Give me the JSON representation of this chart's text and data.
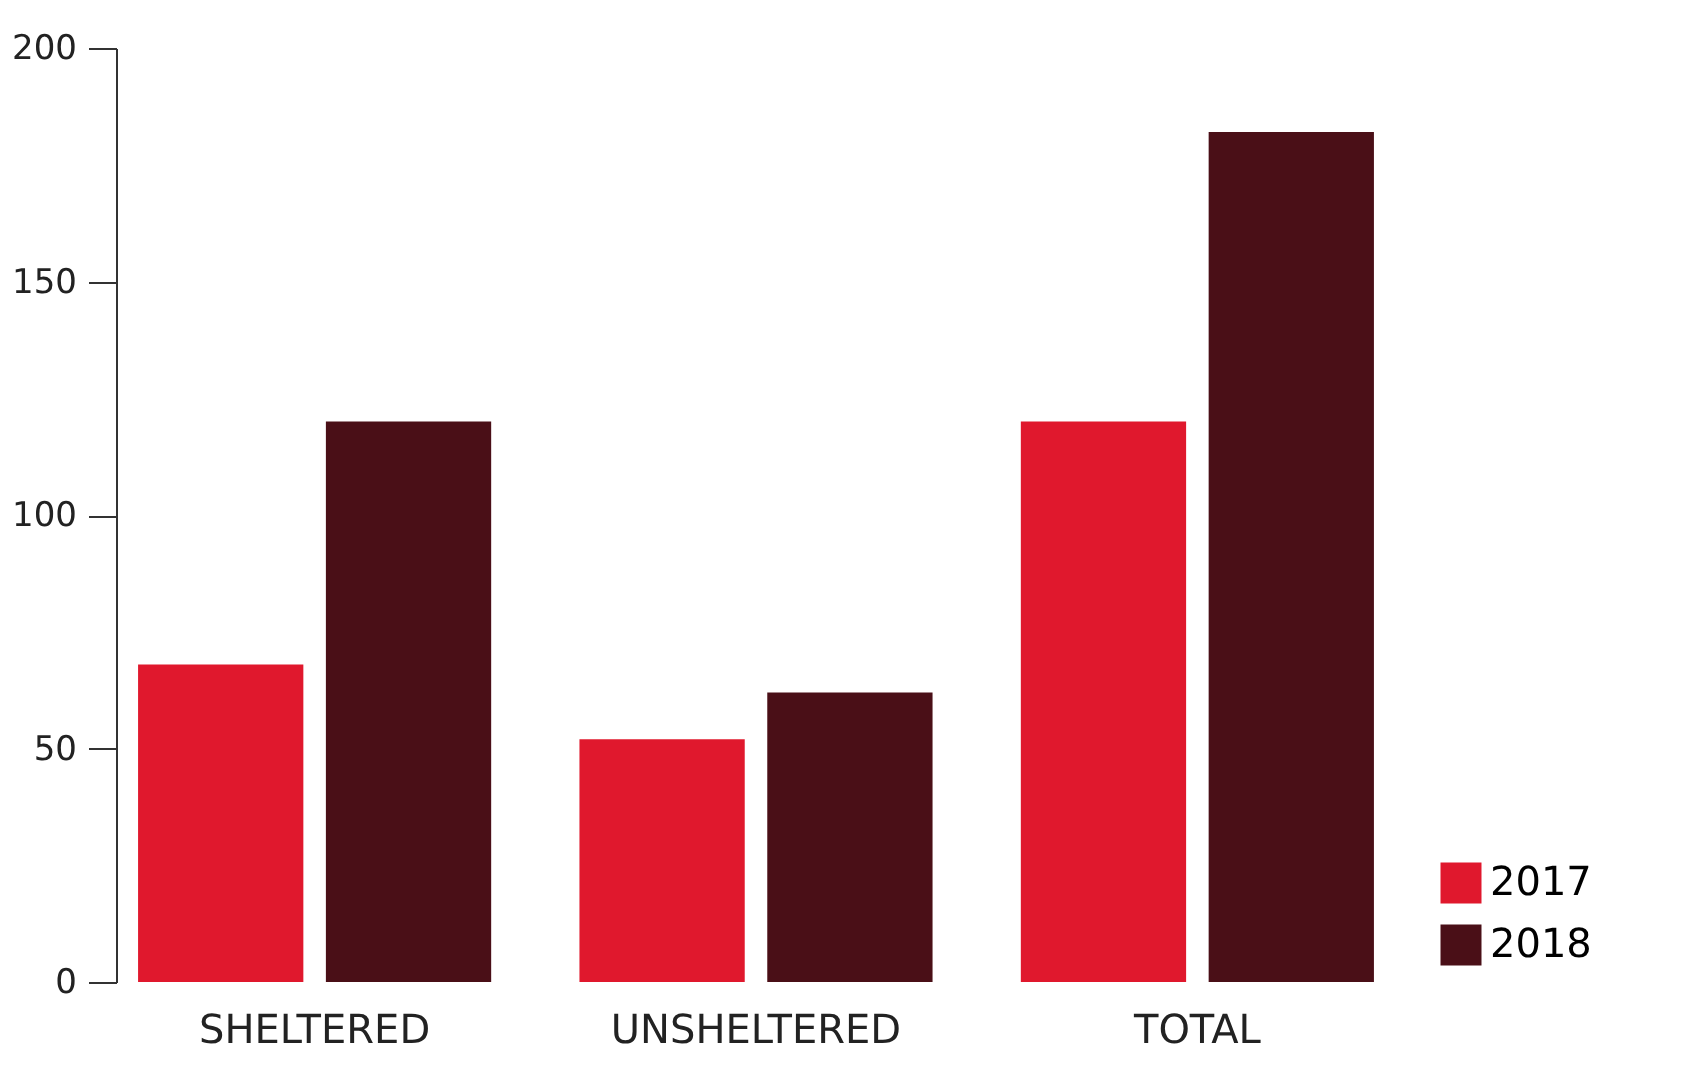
{
  "chart_data": {
    "type": "bar",
    "categories": [
      "SHELTERED",
      "UNSHELTERED",
      "TOTAL"
    ],
    "series": [
      {
        "name": "2017",
        "color": "#e0182d",
        "values": [
          68,
          52,
          120
        ]
      },
      {
        "name": "2018",
        "color": "#4a0f17",
        "values": [
          120,
          62,
          182
        ]
      }
    ],
    "ylim": [
      0,
      200
    ],
    "yticks": [
      0,
      50,
      100,
      150,
      200
    ],
    "grid": false,
    "legend": "bottom right"
  }
}
